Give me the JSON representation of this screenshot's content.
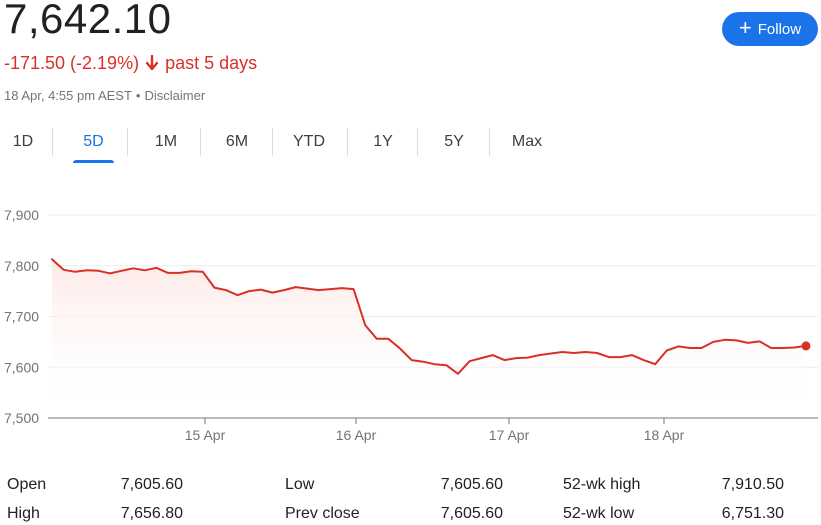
{
  "header": {
    "price": "7,642.10",
    "change": "-171.50 (-2.19%)",
    "period": "past 5 days",
    "timestamp": "18 Apr, 4:55 pm AEST",
    "separator": "•",
    "disclaimer": "Disclaimer",
    "follow_label": "Follow",
    "change_color": "#d93025"
  },
  "tabs": [
    "1D",
    "5D",
    "1M",
    "6M",
    "YTD",
    "1Y",
    "5Y",
    "Max"
  ],
  "active_tab": "5D",
  "chart_data": {
    "type": "line",
    "title": "",
    "xlabel": "",
    "ylabel": "",
    "ylim": [
      7500,
      7900
    ],
    "yticks": [
      "7,900",
      "7,800",
      "7,700",
      "7,600",
      "7,500"
    ],
    "ytick_values": [
      7900,
      7800,
      7700,
      7600,
      7500
    ],
    "xticks": [
      "15 Apr",
      "16 Apr",
      "17 Apr",
      "18 Apr"
    ],
    "line_color": "#d93025",
    "fill": "gradient red",
    "grid": "horizontal",
    "series": [
      {
        "values": [
          7813,
          7792,
          7788,
          7791,
          7790,
          7785,
          7790,
          7795,
          7791,
          7796,
          7786,
          7786,
          7789,
          7788,
          7757,
          7752,
          7742,
          7750,
          7753,
          7747,
          7752,
          7758,
          7755,
          7752,
          7754,
          7756,
          7754,
          7683,
          7656,
          7656,
          7637,
          7614,
          7611,
          7606,
          7604,
          7587,
          7612,
          7618,
          7624,
          7614,
          7618,
          7619,
          7624,
          7627,
          7630,
          7628,
          7630,
          7628,
          7620,
          7620,
          7624,
          7614,
          7606,
          7633,
          7641,
          7638,
          7638,
          7650,
          7654,
          7653,
          7648,
          7651,
          7638,
          7638,
          7639,
          7642
        ]
      }
    ],
    "last_point": 7642.1
  },
  "stats": [
    {
      "label": "Open",
      "value": "7,605.60"
    },
    {
      "label": "High",
      "value": "7,656.80"
    },
    {
      "label": "Low",
      "value": "7,605.60"
    },
    {
      "label": "Prev close",
      "value": "7,605.60"
    },
    {
      "label": "52-wk high",
      "value": "7,910.50"
    },
    {
      "label": "52-wk low",
      "value": "6,751.30"
    }
  ]
}
